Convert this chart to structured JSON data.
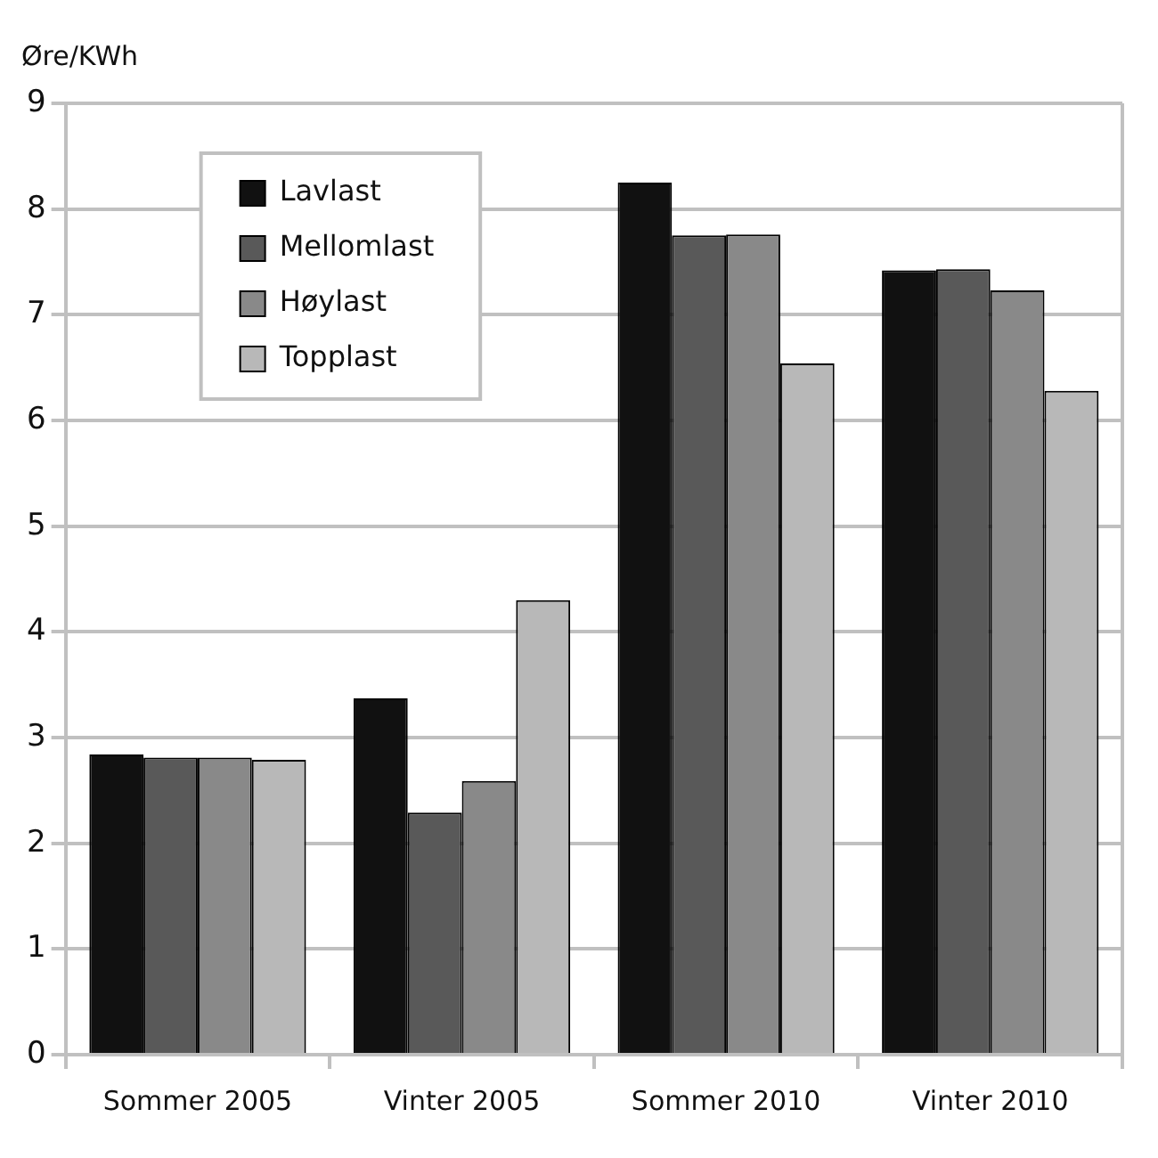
{
  "chart_data": {
    "type": "bar",
    "ylabel": "Øre/KWh",
    "categories": [
      "Sommer 2005",
      "Vinter 2005",
      "Sommer 2010",
      "Vinter 2010"
    ],
    "series": [
      {
        "name": "Lavlast",
        "color": "#111111",
        "values": [
          2.84,
          3.37,
          8.25,
          7.42
        ]
      },
      {
        "name": "Mellomlast",
        "color": "#595959",
        "values": [
          2.81,
          2.29,
          7.75,
          7.43
        ]
      },
      {
        "name": "Høylast",
        "color": "#898989",
        "values": [
          2.81,
          2.59,
          7.76,
          7.23
        ]
      },
      {
        "name": "Topplast",
        "color": "#b8b8b8",
        "values": [
          2.79,
          4.3,
          6.54,
          6.28
        ]
      }
    ],
    "ylim": [
      0,
      9
    ],
    "yticks": [
      0,
      1,
      2,
      3,
      4,
      5,
      6,
      7,
      8,
      9
    ],
    "grid": "y",
    "legend": "top left"
  }
}
